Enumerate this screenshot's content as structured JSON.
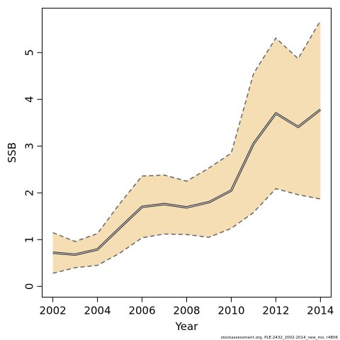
{
  "chart_data": {
    "type": "line",
    "title": "",
    "xlabel": "Year",
    "ylabel": "SSB",
    "x": [
      2002,
      2003,
      2004,
      2005,
      2006,
      2007,
      2008,
      2009,
      2010,
      2011,
      2012,
      2013,
      2014
    ],
    "series": [
      {
        "role": "estimate",
        "values": [
          0.72,
          0.68,
          0.79,
          1.25,
          1.7,
          1.76,
          1.69,
          1.8,
          2.05,
          3.05,
          3.7,
          3.41,
          3.78
        ]
      },
      {
        "role": "upper",
        "values": [
          1.15,
          0.96,
          1.13,
          1.77,
          2.36,
          2.38,
          2.25,
          2.53,
          2.85,
          4.55,
          5.31,
          4.87,
          5.68
        ]
      },
      {
        "role": "lower",
        "values": [
          0.28,
          0.4,
          0.45,
          0.71,
          1.04,
          1.12,
          1.11,
          1.05,
          1.24,
          1.58,
          2.09,
          1.96,
          1.87
        ]
      }
    ],
    "xticks": [
      2002,
      2004,
      2006,
      2008,
      2010,
      2012,
      2014
    ],
    "yticks": [
      0,
      1,
      2,
      3,
      4,
      5
    ],
    "xlim": [
      2001.52,
      2014.48
    ],
    "ylim": [
      -0.23,
      5.95
    ],
    "grid": false,
    "band_color": "#f5deb3",
    "line_color": "#333333",
    "estimate_highlight_color": "#e0e0e0",
    "bound_line_color": "#666666"
  },
  "footer": {
    "text": "stockassessment.org, PLE-2432_2002-2014_new_mo, r4806"
  }
}
